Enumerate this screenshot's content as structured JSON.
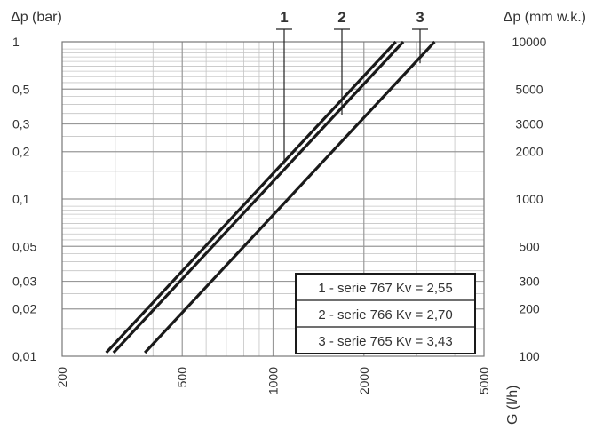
{
  "chart_data": {
    "type": "line",
    "xscale": "log",
    "yscale": "log",
    "grid": true,
    "xlim": [
      200,
      5000
    ],
    "ylim": [
      0.01,
      1
    ],
    "x_ticks": [
      200,
      500,
      1000,
      2000,
      5000
    ],
    "x_tick_labels": [
      "200",
      "500",
      "1000",
      "2000",
      "5000"
    ],
    "y_ticks": [
      0.01,
      0.02,
      0.03,
      0.05,
      0.1,
      0.2,
      0.3,
      0.5,
      1
    ],
    "y_tick_labels": [
      "0,01",
      "0,02",
      "0,03",
      "0,05",
      "0,1",
      "0,2",
      "0,3",
      "0,5",
      "1"
    ],
    "y2_ticks": [
      100,
      200,
      300,
      500,
      1000,
      2000,
      3000,
      5000,
      10000
    ],
    "y2_tick_labels": [
      "100",
      "200",
      "300",
      "500",
      "1000",
      "2000",
      "3000",
      "5000",
      "10000"
    ],
    "ylabel": "Δp (bar)",
    "y2label": "Δp (mm w.k.)",
    "xlabel": "G (l/h)",
    "series": [
      {
        "name": "1 - serie 767 Kv = 2,55",
        "marker": "1",
        "x": [
          280,
          2550
        ],
        "y": [
          0.012,
          1
        ]
      },
      {
        "name": "2 - serie 766 Kv = 2,70",
        "marker": "2",
        "x": [
          296,
          2700
        ],
        "y": [
          0.012,
          1
        ]
      },
      {
        "name": "3 - serie 765 Kv = 3,43",
        "marker": "3",
        "x": [
          376,
          3430
        ],
        "y": [
          0.012,
          1
        ]
      }
    ],
    "legend_position": "bottom-right"
  }
}
